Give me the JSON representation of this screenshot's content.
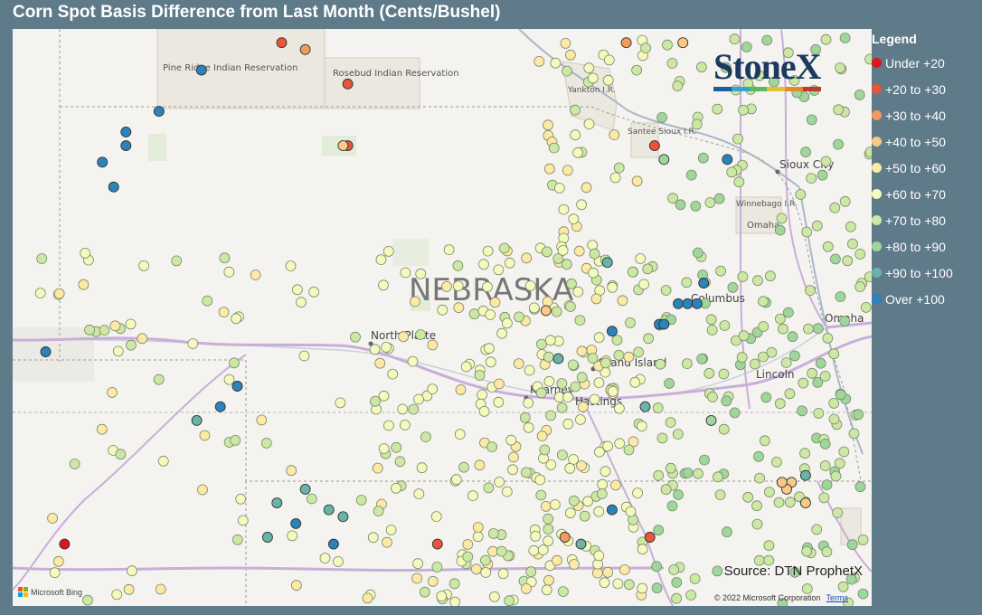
{
  "title": "Corn Spot Basis Difference from Last Month (Cents/Bushel)",
  "legend": {
    "title": "Legend",
    "items": [
      {
        "label": "Under +20",
        "color": "#d7191c"
      },
      {
        "label": "+20 to +30",
        "color": "#e8553b"
      },
      {
        "label": "+30 to +40",
        "color": "#f39a5c"
      },
      {
        "label": "+40 to +50",
        "color": "#f9c985"
      },
      {
        "label": "+50 to +60",
        "color": "#fde8a6"
      },
      {
        "label": "+60 to +70",
        "color": "#f6f9be"
      },
      {
        "label": "+70 to +80",
        "color": "#cde8a4"
      },
      {
        "label": "+80 to +90",
        "color": "#9fd69c"
      },
      {
        "label": "+90 to +100",
        "color": "#6ab3aa"
      },
      {
        "label": "Over +100",
        "color": "#2b83ba"
      }
    ]
  },
  "source": "Source: DTN ProphetX",
  "copyright": "© 2022 Microsoft Corporation",
  "terms_link": "Terms",
  "bing_attribution": "Microsoft Bing",
  "logo_text": "StoneX",
  "logo_colors": [
    "#1f5f9e",
    "#3aa0d8",
    "#5cb85c",
    "#e0c23a",
    "#e8862a",
    "#c0392b"
  ],
  "map_labels": {
    "state": "NEBRASKA",
    "cities": [
      "North Platte",
      "Grand Island",
      "Kearney",
      "Hastings",
      "Columbus",
      "Omaha",
      "Lincoln",
      "Sioux City"
    ],
    "reservations": [
      "Pine Ridge Indian Reservation",
      "Rosebud Indian Reservation",
      "Yankton I.R.",
      "Santee Sioux I.R.",
      "Winnebago I.R.",
      "Omaha"
    ]
  },
  "points": [
    {
      "lon": -102.4,
      "lat": 43.15,
      "cat": 9
    },
    {
      "lon": -102.85,
      "lat": 42.85,
      "cat": 9
    },
    {
      "lon": -103.2,
      "lat": 42.7,
      "cat": 9
    },
    {
      "lon": -103.2,
      "lat": 42.6,
      "cat": 9
    },
    {
      "lon": -103.45,
      "lat": 42.48,
      "cat": 9
    },
    {
      "lon": -103.33,
      "lat": 42.3,
      "cat": 9
    },
    {
      "lon": -101.55,
      "lat": 43.35,
      "cat": 1
    },
    {
      "lon": -101.3,
      "lat": 43.3,
      "cat": 2
    },
    {
      "lon": -100.85,
      "lat": 43.05,
      "cat": 1
    },
    {
      "lon": -100.85,
      "lat": 42.6,
      "cat": 1
    },
    {
      "lon": -100.9,
      "lat": 42.6,
      "cat": 3
    },
    {
      "lon": -104.05,
      "lat": 41.1,
      "cat": 9
    },
    {
      "lon": -102.02,
      "lat": 40.85,
      "cat": 9
    },
    {
      "lon": -102.2,
      "lat": 40.7,
      "cat": 9
    },
    {
      "lon": -102.45,
      "lat": 40.6,
      "cat": 8
    },
    {
      "lon": -101.3,
      "lat": 40.1,
      "cat": 8
    },
    {
      "lon": -101.6,
      "lat": 40.0,
      "cat": 8
    },
    {
      "lon": -101.05,
      "lat": 39.95,
      "cat": 8
    },
    {
      "lon": -100.9,
      "lat": 39.9,
      "cat": 8
    },
    {
      "lon": -101.7,
      "lat": 39.75,
      "cat": 8
    },
    {
      "lon": -101.4,
      "lat": 39.85,
      "cat": 9
    },
    {
      "lon": -101.0,
      "lat": 39.7,
      "cat": 9
    },
    {
      "lon": -103.85,
      "lat": 39.7,
      "cat": 0
    },
    {
      "lon": -98.75,
      "lat": 41.4,
      "cat": 3
    },
    {
      "lon": -98.05,
      "lat": 41.25,
      "cat": 9
    },
    {
      "lon": -97.35,
      "lat": 41.45,
      "cat": 9
    },
    {
      "lon": -97.25,
      "lat": 41.45,
      "cat": 9
    },
    {
      "lon": -97.15,
      "lat": 41.45,
      "cat": 9
    },
    {
      "lon": -97.08,
      "lat": 41.6,
      "cat": 9
    },
    {
      "lon": -97.55,
      "lat": 41.3,
      "cat": 9
    },
    {
      "lon": -97.5,
      "lat": 41.3,
      "cat": 9
    },
    {
      "lon": -98.1,
      "lat": 41.75,
      "cat": 8
    },
    {
      "lon": -96.83,
      "lat": 42.5,
      "cat": 9
    },
    {
      "lon": -98.05,
      "lat": 39.95,
      "cat": 9
    },
    {
      "lon": -98.38,
      "lat": 39.7,
      "cat": 8
    },
    {
      "lon": -96.0,
      "lat": 40.2,
      "cat": 8
    },
    {
      "lon": -97.0,
      "lat": 40.6,
      "cat": 7
    },
    {
      "lon": -97.7,
      "lat": 40.7,
      "cat": 8
    },
    {
      "lon": -98.62,
      "lat": 41.05,
      "cat": 8
    },
    {
      "lon": -97.6,
      "lat": 42.6,
      "cat": 1
    },
    {
      "lon": -97.5,
      "lat": 42.5,
      "cat": 7
    },
    {
      "lon": -96.15,
      "lat": 40.15,
      "cat": 3
    },
    {
      "lon": -96.2,
      "lat": 40.1,
      "cat": 3
    },
    {
      "lon": -96.25,
      "lat": 40.15,
      "cat": 3
    },
    {
      "lon": -96.0,
      "lat": 40.0,
      "cat": 3
    },
    {
      "lon": -99.9,
      "lat": 39.7,
      "cat": 1
    },
    {
      "lon": -98.55,
      "lat": 39.75,
      "cat": 2
    },
    {
      "lon": -97.65,
      "lat": 39.75,
      "cat": 1
    },
    {
      "lon": -97.9,
      "lat": 43.35,
      "cat": 2
    },
    {
      "lon": -97.3,
      "lat": 43.35,
      "cat": 3
    }
  ]
}
